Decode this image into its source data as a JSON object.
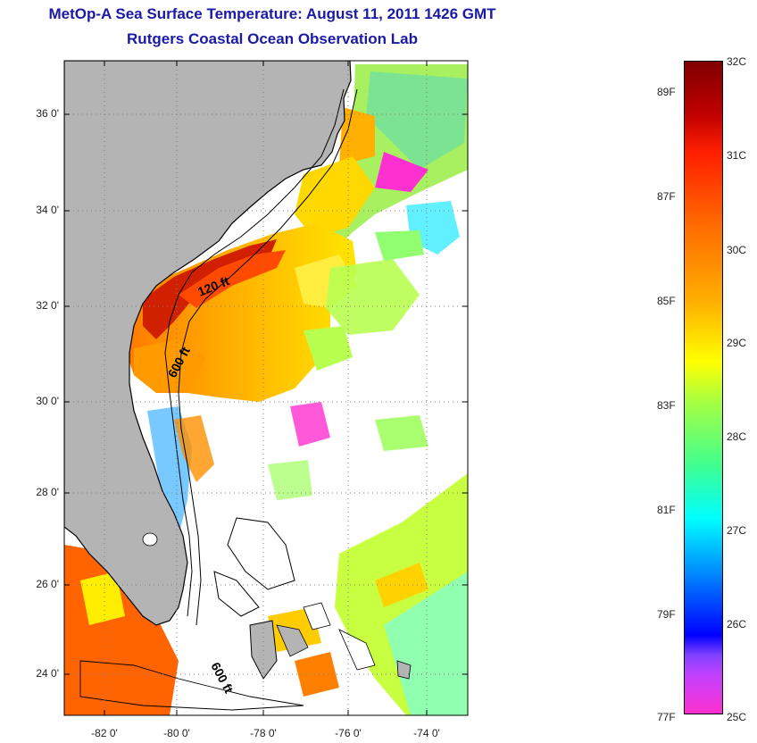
{
  "title_line1": "MetOp-A Sea Surface Temperature:  August 11, 2011 1426 GMT",
  "title_line2": "Rutgers Coastal Ocean Observation Lab",
  "map": {
    "lat_labels": [
      "36 0'",
      "34 0'",
      "32 0'",
      "30 0'",
      "28 0'",
      "26 0'",
      "24 0'"
    ],
    "lon_labels": [
      "-82 0'",
      "-80 0'",
      "-78 0'",
      "-76 0'",
      "-74 0'"
    ],
    "contour_labels": [
      "120 ft",
      "600 ft",
      "600 ft"
    ],
    "colors": {
      "land": "#b4b4b4",
      "coast": "#000000",
      "grid": "#808080"
    }
  },
  "colorbar": {
    "celsius_labels": [
      "32C",
      "31C",
      "30C",
      "29C",
      "28C",
      "27C",
      "26C",
      "25C"
    ],
    "fahrenheit_labels": [
      "89F",
      "87F",
      "85F",
      "83F",
      "81F",
      "79F",
      "77F"
    ],
    "range_celsius": [
      25,
      32
    ]
  }
}
